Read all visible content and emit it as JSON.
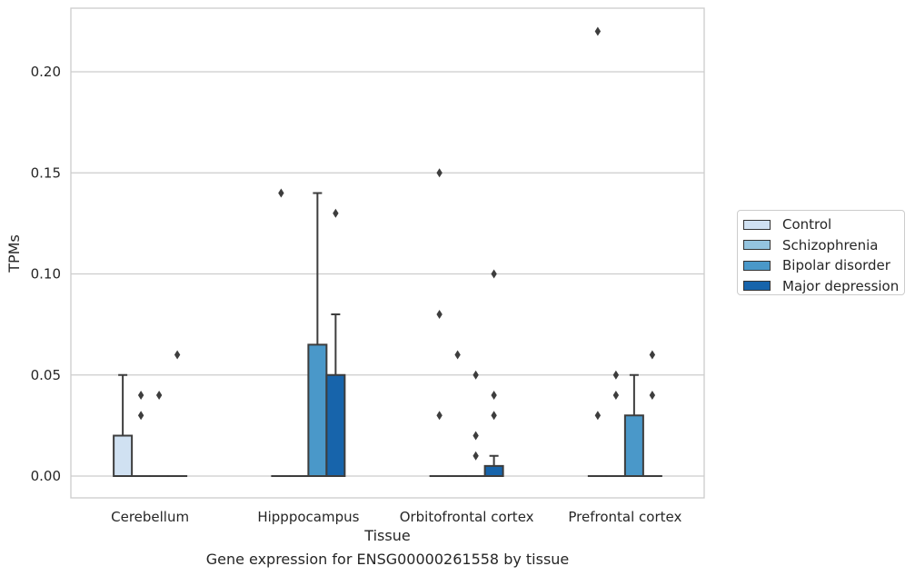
{
  "caption": "Gene expression for ENSG00000261558 by tissue",
  "chart_data": {
    "type": "box",
    "xlabel": "Tissue",
    "ylabel": "TPMs",
    "ylim": [
      -0.011,
      0.232
    ],
    "yticks": [
      0.0,
      0.05,
      0.1,
      0.15,
      0.2
    ],
    "ytick_labels": [
      "0.00",
      "0.05",
      "0.10",
      "0.15",
      "0.20"
    ],
    "categories": [
      "Cerebellum",
      "Hipppocampus",
      "Orbitofrontal cortex",
      "Prefrontal cortex"
    ],
    "grid": "horizontal",
    "legend_position": "right",
    "series": [
      {
        "name": "Control",
        "color": "#d0e1f2",
        "boxes": [
          {
            "min": 0,
            "q1": 0,
            "median": 0,
            "q3": 0.02,
            "max": 0.05,
            "outliers": []
          },
          {
            "min": 0,
            "q1": 0,
            "median": 0,
            "q3": 0,
            "max": 0,
            "outliers": [
              0.14
            ]
          },
          {
            "min": 0,
            "q1": 0,
            "median": 0,
            "q3": 0,
            "max": 0,
            "outliers": [
              0.15,
              0.08,
              0.03
            ]
          },
          {
            "min": 0,
            "q1": 0,
            "median": 0,
            "q3": 0,
            "max": 0,
            "outliers": [
              0.22,
              0.03
            ]
          }
        ]
      },
      {
        "name": "Schizophrenia",
        "color": "#94c4df",
        "boxes": [
          {
            "min": 0,
            "q1": 0,
            "median": 0,
            "q3": 0,
            "max": 0,
            "outliers": [
              0.04,
              0.03
            ]
          },
          {
            "min": 0,
            "q1": 0,
            "median": 0,
            "q3": 0,
            "max": 0,
            "outliers": []
          },
          {
            "min": 0,
            "q1": 0,
            "median": 0,
            "q3": 0,
            "max": 0,
            "outliers": [
              0.06
            ]
          },
          {
            "min": 0,
            "q1": 0,
            "median": 0,
            "q3": 0,
            "max": 0,
            "outliers": [
              0.05,
              0.04
            ]
          }
        ]
      },
      {
        "name": "Bipolar disorder",
        "color": "#4a98c9",
        "boxes": [
          {
            "min": 0,
            "q1": 0,
            "median": 0,
            "q3": 0,
            "max": 0,
            "outliers": [
              0.04
            ]
          },
          {
            "min": 0,
            "q1": 0,
            "median": 0,
            "q3": 0.065,
            "max": 0.14,
            "outliers": []
          },
          {
            "min": 0,
            "q1": 0,
            "median": 0,
            "q3": 0,
            "max": 0,
            "outliers": [
              0.05,
              0.02,
              0.01
            ]
          },
          {
            "min": 0,
            "q1": 0,
            "median": 0,
            "q3": 0.03,
            "max": 0.05,
            "outliers": []
          }
        ]
      },
      {
        "name": "Major depression",
        "color": "#1764ab",
        "boxes": [
          {
            "min": 0,
            "q1": 0,
            "median": 0,
            "q3": 0,
            "max": 0,
            "outliers": [
              0.06
            ]
          },
          {
            "min": 0,
            "q1": 0,
            "median": 0,
            "q3": 0.05,
            "max": 0.08,
            "outliers": [
              0.13
            ]
          },
          {
            "min": 0,
            "q1": 0,
            "median": 0,
            "q3": 0.005,
            "max": 0.01,
            "outliers": [
              0.1,
              0.04,
              0.03
            ]
          },
          {
            "min": 0,
            "q1": 0,
            "median": 0,
            "q3": 0,
            "max": 0,
            "outliers": [
              0.06,
              0.04
            ]
          }
        ]
      }
    ]
  }
}
